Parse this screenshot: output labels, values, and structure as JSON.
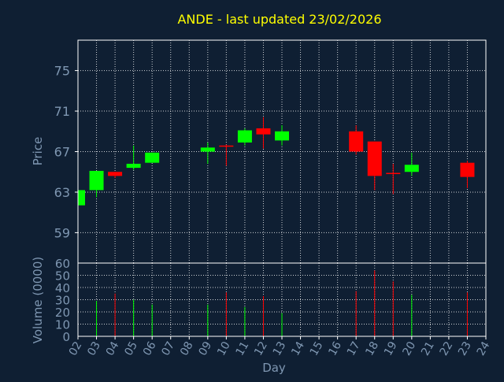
{
  "chart_data": {
    "type": "candlestick",
    "title": "ANDE - last updated 23/02/2026",
    "xlabel": "Day",
    "ylabel": "Price",
    "volume_label": "Volume (0000)",
    "x_ticks": [
      "02",
      "03",
      "04",
      "05",
      "06",
      "07",
      "08",
      "09",
      "10",
      "11",
      "12",
      "13",
      "14",
      "15",
      "16",
      "17",
      "18",
      "19",
      "20",
      "21",
      "22",
      "23",
      "24"
    ],
    "price_ticks": [
      59,
      63,
      67,
      71,
      75
    ],
    "price_range": [
      56,
      78
    ],
    "volume_ticks": [
      0,
      10,
      20,
      30,
      40,
      50,
      60
    ],
    "volume_range": [
      0,
      60
    ],
    "grid": true,
    "colors": {
      "up": "#00ff00",
      "down": "#ff0000",
      "background": "#0f1f33",
      "axis": "#ffffff",
      "text": "#7f97b2",
      "title": "#ffff00"
    },
    "candles": [
      {
        "day": 2,
        "open": 61.7,
        "high": 63.2,
        "low": 61.7,
        "close": 63.2,
        "volume": 0
      },
      {
        "day": 3,
        "open": 63.2,
        "high": 65.1,
        "low": 62.5,
        "close": 65.1,
        "volume": 29
      },
      {
        "day": 4,
        "open": 65.0,
        "high": 65.0,
        "low": 64.4,
        "close": 64.6,
        "volume": 35
      },
      {
        "day": 5,
        "open": 65.4,
        "high": 67.6,
        "low": 65.2,
        "close": 65.8,
        "volume": 30
      },
      {
        "day": 6,
        "open": 65.9,
        "high": 66.9,
        "low": 65.9,
        "close": 66.9,
        "volume": 26
      },
      {
        "day": 9,
        "open": 67.0,
        "high": 67.9,
        "low": 65.8,
        "close": 67.4,
        "volume": 26
      },
      {
        "day": 10,
        "open": 67.6,
        "high": 67.7,
        "low": 65.6,
        "close": 67.5,
        "volume": 36
      },
      {
        "day": 11,
        "open": 67.9,
        "high": 69.3,
        "low": 67.6,
        "close": 69.1,
        "volume": 24
      },
      {
        "day": 12,
        "open": 69.3,
        "high": 70.4,
        "low": 67.3,
        "close": 68.7,
        "volume": 33
      },
      {
        "day": 13,
        "open": 68.1,
        "high": 69.6,
        "low": 67.6,
        "close": 69.0,
        "volume": 19
      },
      {
        "day": 17,
        "open": 69.0,
        "high": 69.6,
        "low": 66.7,
        "close": 67.0,
        "volume": 37
      },
      {
        "day": 18,
        "open": 68.0,
        "high": 68.0,
        "low": 63.2,
        "close": 64.6,
        "volume": 54
      },
      {
        "day": 19,
        "open": 64.9,
        "high": 65.8,
        "low": 62.8,
        "close": 64.8,
        "volume": 45
      },
      {
        "day": 20,
        "open": 65.0,
        "high": 66.9,
        "low": 64.6,
        "close": 65.7,
        "volume": 34
      },
      {
        "day": 23,
        "open": 65.9,
        "high": 66.1,
        "low": 63.4,
        "close": 64.5,
        "volume": 36
      }
    ]
  }
}
